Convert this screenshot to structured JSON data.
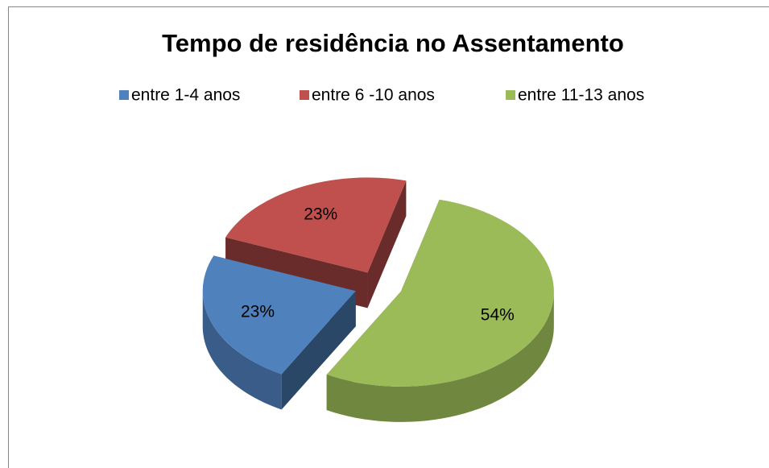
{
  "chart_data": {
    "type": "pie3d",
    "title": "Tempo de residência no Assentamento",
    "categories": [
      "entre 1-4 anos",
      "entre 6 -10 anos",
      "entre 11-13 anos"
    ],
    "values": [
      23,
      23,
      54
    ],
    "value_labels": [
      "23%",
      "23%",
      "54%"
    ],
    "colors": [
      "#4f81bd",
      "#c0504d",
      "#9bbb59"
    ],
    "legend": "top"
  }
}
